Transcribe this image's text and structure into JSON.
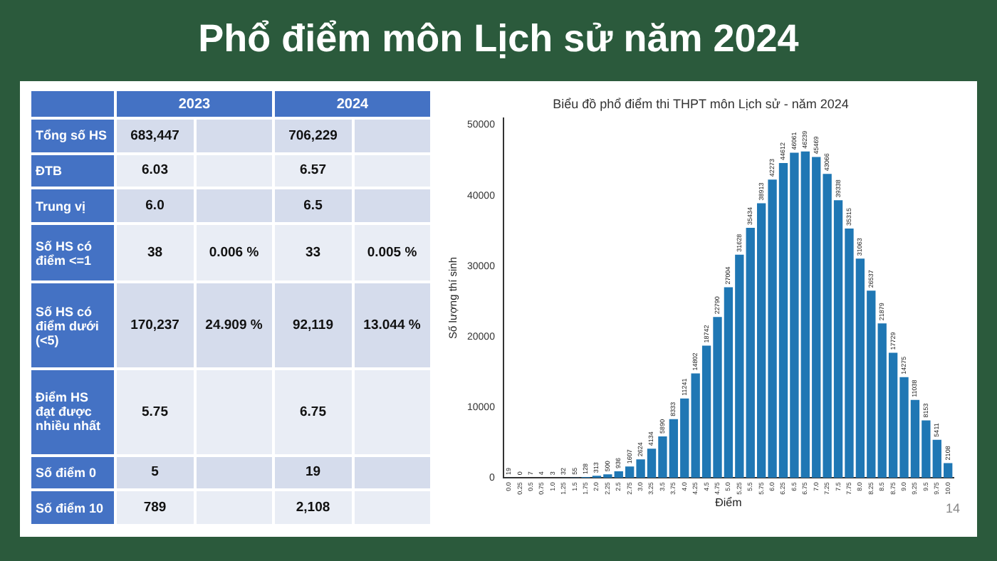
{
  "chart_data": [
    {
      "type": "other",
      "title": "Phổ điểm môn Lịch sử năm 2024",
      "categories": [
        "2023",
        "2024"
      ],
      "y_categories": [
        "Tổng số HS",
        "ĐTB",
        "Trung vị",
        "Số HS có điểm <=1",
        "Số HS có điểm dưới (<5)",
        "Điểm HS đạt được nhiều nhất",
        "Số điểm 0",
        "Số điểm 10"
      ],
      "cell_labels": [
        [
          "683,447",
          null,
          "706,229",
          null
        ],
        [
          "6.03",
          null,
          "6.57",
          null
        ],
        [
          "6.0",
          null,
          "6.5",
          null
        ],
        [
          "38",
          "0.006 %",
          "33",
          "0.005 %"
        ],
        [
          "170,237",
          "24.909 %",
          "92,119",
          "13.044 %"
        ],
        [
          "5.75",
          null,
          "6.75",
          null
        ],
        [
          "5",
          null,
          "19",
          null
        ],
        [
          "789",
          null,
          "2,108",
          null
        ]
      ],
      "annotations": [
        "14"
      ]
    },
    {
      "type": "bar",
      "title": "Biểu đồ phổ điểm thi THPT môn Lịch sử - năm 2024",
      "xlabel": "Điểm",
      "ylabel": "Số lượng thí sinh",
      "color": "#1f77b4",
      "categories": [
        "0.0",
        "0.25",
        "0.5",
        "0.75",
        "1.0",
        "1.25",
        "1.5",
        "1.75",
        "2.0",
        "2.25",
        "2.5",
        "2.75",
        "3.0",
        "3.25",
        "3.5",
        "3.75",
        "4.0",
        "4.25",
        "4.5",
        "4.75",
        "5.0",
        "5.25",
        "5.5",
        "5.75",
        "6.0",
        "6.25",
        "6.5",
        "6.75",
        "7.0",
        "7.25",
        "7.5",
        "7.75",
        "8.0",
        "8.25",
        "8.5",
        "8.75",
        "9.0",
        "9.25",
        "9.5",
        "9.75",
        "10.0"
      ],
      "values": [
        19,
        0,
        7,
        4,
        3,
        32,
        55,
        128,
        313,
        500,
        936,
        1607,
        2624,
        4134,
        5890,
        8333,
        11241,
        14802,
        18742,
        22790,
        27004,
        31628,
        35434,
        38913,
        42273,
        44612,
        46061,
        46239,
        45469,
        43066,
        39338,
        35315,
        31063,
        26537,
        21879,
        17729,
        14275,
        11038,
        8153,
        5411,
        2108
      ],
      "data_labels": true,
      "ylim": [
        0,
        51000
      ],
      "yticks": [
        0,
        10000,
        20000,
        30000,
        40000,
        50000
      ],
      "grid": false
    }
  ]
}
